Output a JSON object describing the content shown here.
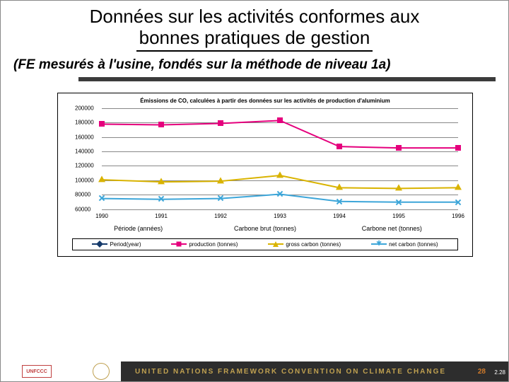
{
  "title_line1": "Données sur les activités conformes aux",
  "title_line2": "bonnes pratiques de gestion",
  "subtitle": "(FE mesurés à l'usine, fondés sur la méthode de niveau 1a)",
  "chart": {
    "title": "Émissions de CO, calculées à partir des données sur les activités de production d'aluminium",
    "ylim": [
      60000,
      200000
    ],
    "ytick_step": 20000,
    "yticks": [
      "60000",
      "80000",
      "100000",
      "120000",
      "140000",
      "160000",
      "180000",
      "200000"
    ],
    "xcats": [
      "1990",
      "1991",
      "1992",
      "1993",
      "1994",
      "1995",
      "1996"
    ],
    "axis_label_left": "Période (années)",
    "axis_label_mid": "Carbone brut (tonnes)",
    "axis_label_right": "Carbone net (tonnes)",
    "series": [
      {
        "name": "Period(year)",
        "label": "Period(year)",
        "color": "#153a6b",
        "values": []
      },
      {
        "name": "production",
        "label": "production (tonnes)",
        "color": "#e5007d",
        "marker": "square",
        "values": [
          178000,
          177000,
          179000,
          183000,
          147000,
          145000,
          145000
        ]
      },
      {
        "name": "gross_carbon",
        "label": "gross carbon (tonnes)",
        "color": "#d9b300",
        "marker": "triangle",
        "values": [
          101000,
          98000,
          99000,
          107000,
          90000,
          89000,
          90000
        ]
      },
      {
        "name": "net_carbon",
        "label": "net carbon (tonnes)",
        "color": "#3da6d9",
        "marker": "cross",
        "values": [
          75000,
          74000,
          75000,
          81000,
          71000,
          70000,
          70000
        ]
      }
    ],
    "legend": [
      {
        "label": "Period(year)",
        "color": "#153a6b",
        "marker": "diamond"
      },
      {
        "label": "production (tonnes)",
        "color": "#e5007d",
        "marker": "square"
      },
      {
        "label": "gross carbon (tonnes)",
        "color": "#d9b300",
        "marker": "triangle"
      },
      {
        "label": "net carbon (tonnes)",
        "color": "#3da6d9",
        "marker": "cross"
      }
    ],
    "grid_color": "#888888",
    "background": "#ffffff"
  },
  "footer": {
    "logo_text": "UNFCCC",
    "org_text": "UNITED NATIONS FRAMEWORK CONVENTION ON CLIMATE CHANGE",
    "side_num": "28",
    "page_num": "2.28"
  }
}
